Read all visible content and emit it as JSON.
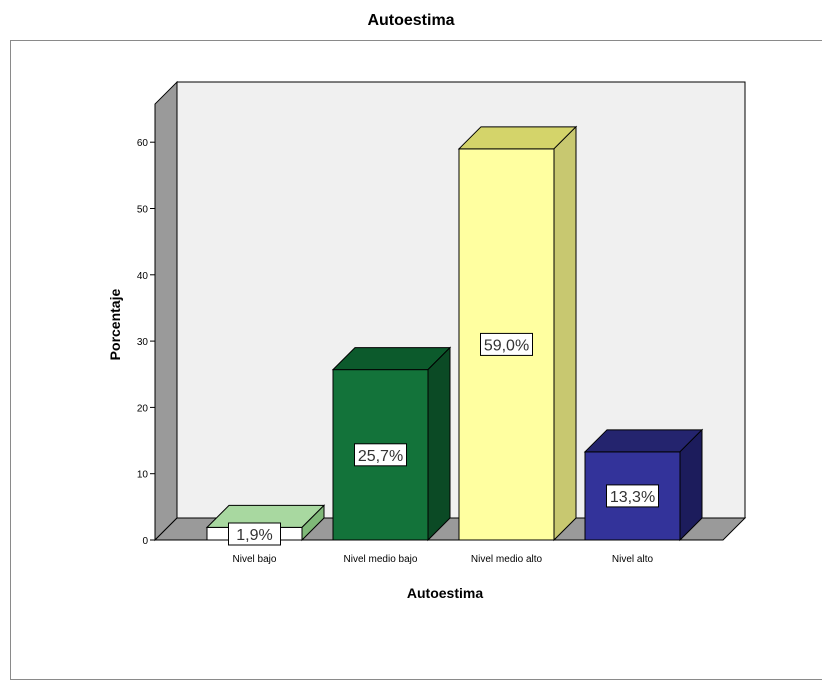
{
  "chart_data": {
    "type": "bar",
    "title": "Autoestima",
    "xlabel": "Autoestima",
    "ylabel": "Porcentaje",
    "categories": [
      "Nivel bajo",
      "Nivel medio bajo",
      "Nivel medio alto",
      "Nivel alto"
    ],
    "values": [
      1.9,
      25.7,
      59.0,
      13.3
    ],
    "data_labels": [
      "1,9%",
      "25,7%",
      "59,0%",
      "13,3%"
    ],
    "ylim": [
      0,
      65
    ],
    "yticks": [
      0,
      10,
      20,
      30,
      40,
      50,
      60
    ],
    "grid": false,
    "legend": "none",
    "colors": [
      {
        "front": "#ffffff",
        "top": "#a8d8a0",
        "side": "#7fb878"
      },
      {
        "front": "#13733a",
        "top": "#0c5a2c",
        "side": "#0b4a25"
      },
      {
        "front": "#ffffa0",
        "top": "#d4d46a",
        "side": "#c8c870"
      },
      {
        "front": "#33339a",
        "top": "#24246e",
        "side": "#1c1c5c"
      }
    ],
    "wall_color": "#f0f0f0",
    "floor_color": "#9a9a9a"
  }
}
